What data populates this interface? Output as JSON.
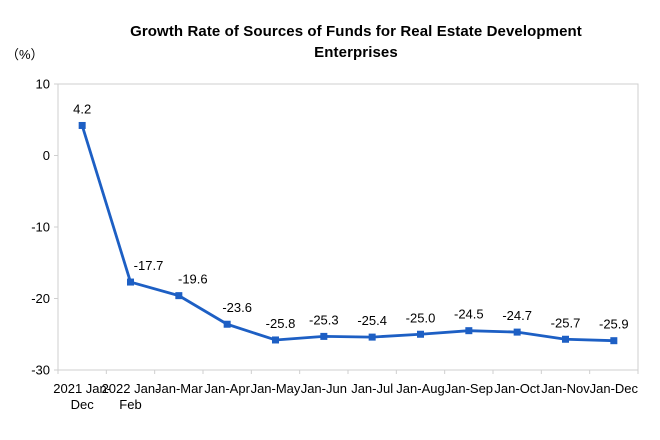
{
  "chart_data": {
    "type": "line",
    "title": "Growth Rate of Sources of Funds for Real Estate Development Enterprises",
    "title_lines": [
      "Growth Rate of Sources of Funds for Real Estate Development",
      "Enterprises"
    ],
    "unit_label": "（%）",
    "categories": [
      "2021 Jan-\nDec",
      "2022 Jan-\nFeb",
      "Jan-Mar",
      "Jan-Apr",
      "Jan-May",
      "Jan-Jun",
      "Jan-Jul",
      "Jan-Aug",
      "Jan-Sep",
      "Jan-Oct",
      "Jan-Nov",
      "Jan-Dec"
    ],
    "values": [
      4.2,
      -17.7,
      -19.6,
      -23.6,
      -25.8,
      -25.3,
      -25.4,
      -25.0,
      -24.5,
      -24.7,
      -25.7,
      -25.9
    ],
    "data_labels": [
      "4.2",
      "-17.7",
      "-19.6",
      "-23.6",
      "-25.8",
      "-25.3",
      "-25.4",
      "-25.0",
      "-24.5",
      "-24.7",
      "-25.7",
      "-25.9"
    ],
    "yticks": [
      10,
      0,
      -10,
      -20,
      -30
    ],
    "ylim": [
      -30,
      10
    ],
    "xlabel": "",
    "ylabel": "（%）",
    "grid": false,
    "legend": "none",
    "marker": "square",
    "line_color": "#1d5fc4",
    "axis_color": "#cfcfcf",
    "text_color": "#000000",
    "label_dx": [
      0,
      18,
      14,
      10,
      5,
      0,
      0,
      0,
      0,
      0,
      0,
      0
    ]
  }
}
